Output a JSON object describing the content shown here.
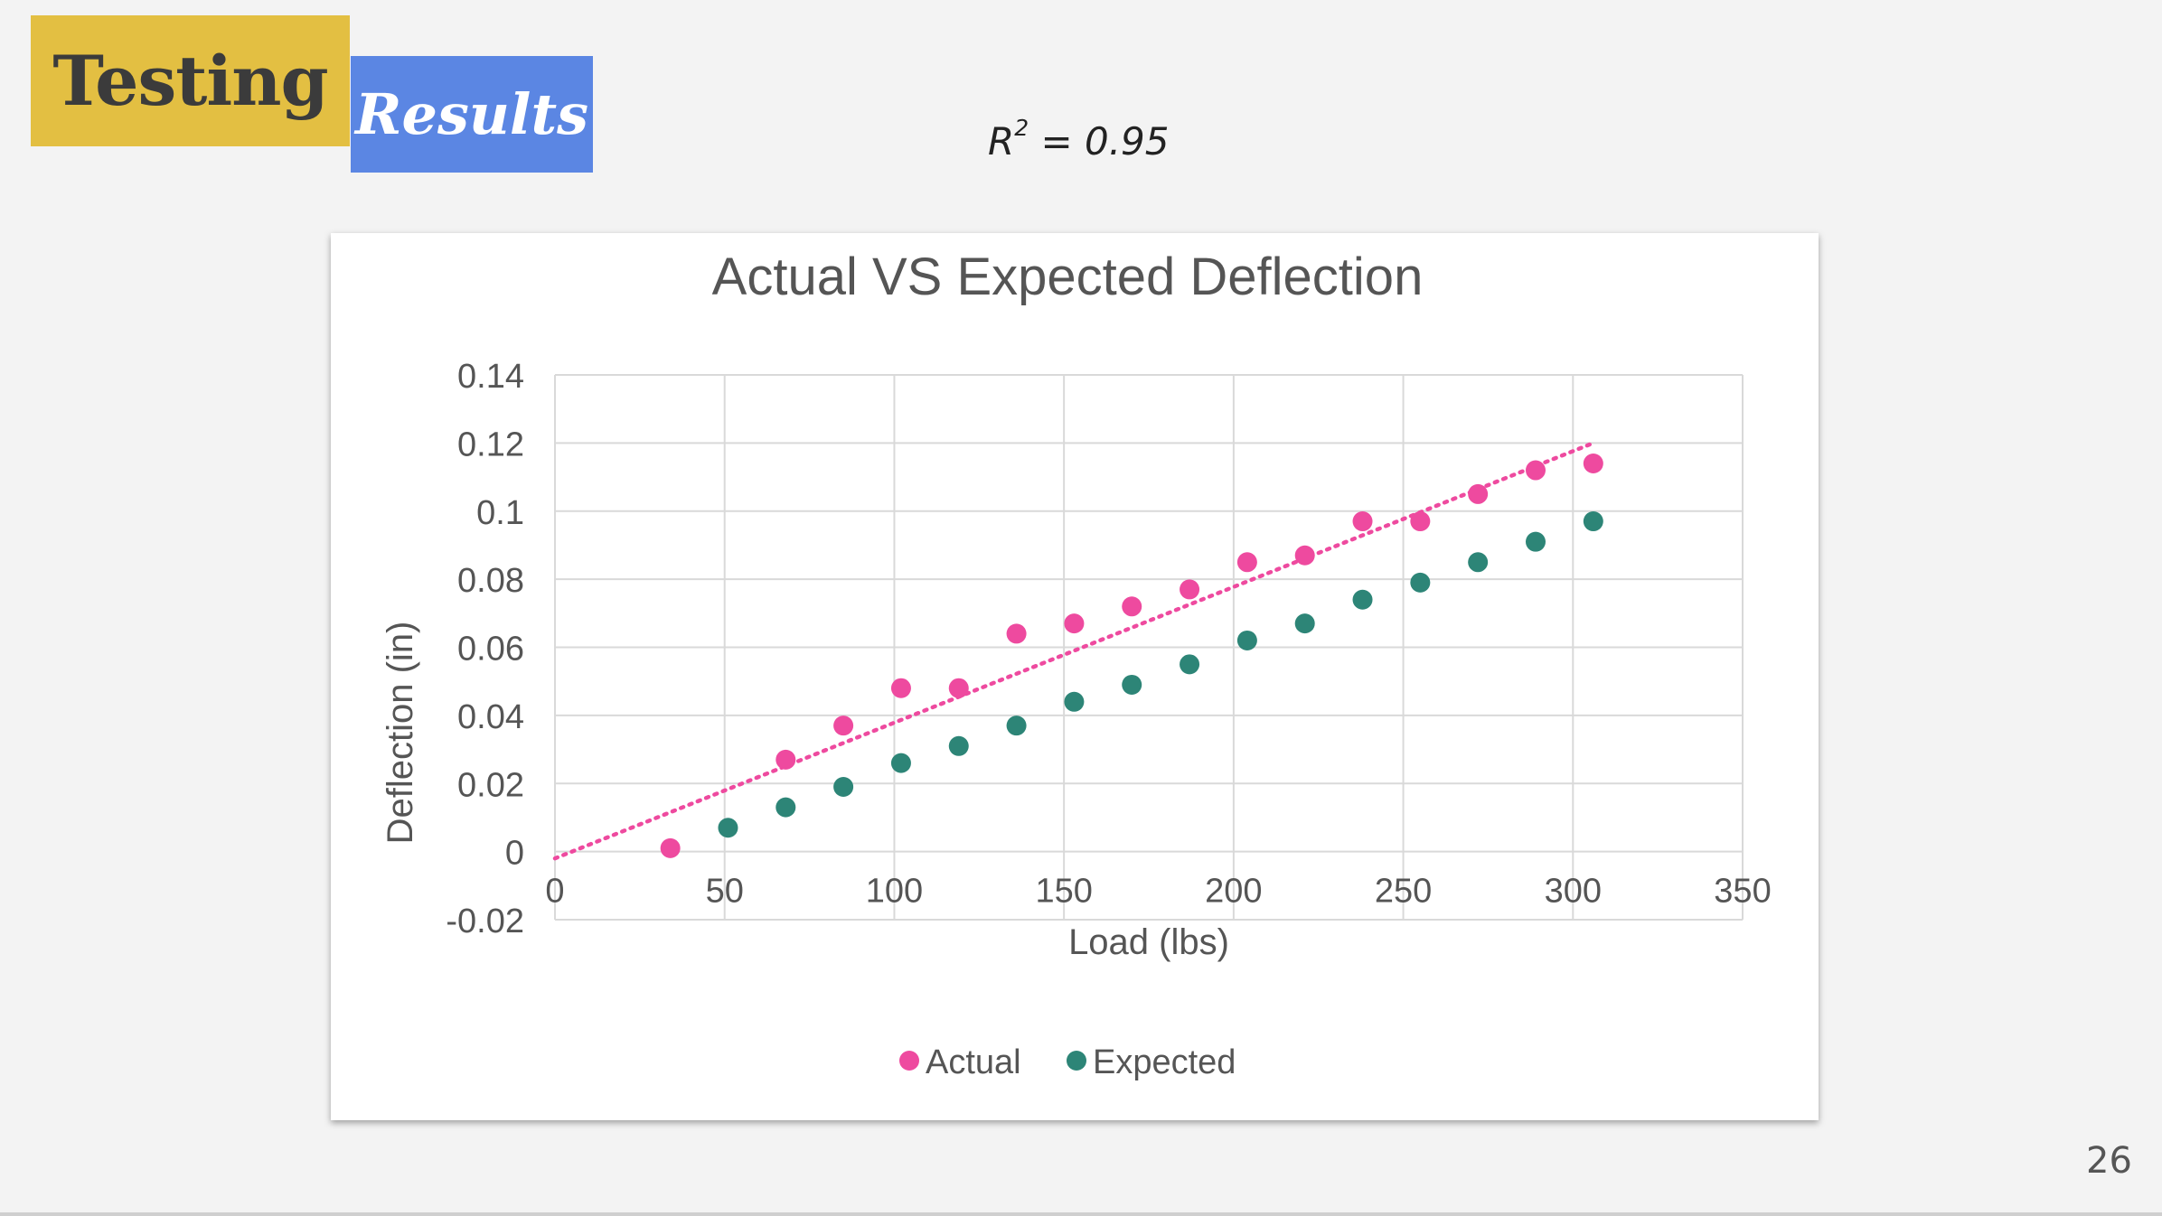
{
  "slide": {
    "title_part1": "Testing",
    "title_part2": "Results",
    "r2_prefix": "R",
    "r2_exponent": "2",
    "r2_suffix": " = 0.95",
    "page_number": "26"
  },
  "colors": {
    "actual": "#ee4a9f",
    "expected": "#2d8577",
    "trendline": "#ee4a9f",
    "grid": "#d9d9d9",
    "title_badge": "#e3bf42",
    "subtitle_badge": "#5b86e3"
  },
  "chart_data": {
    "type": "scatter",
    "title": "Actual VS Expected Deflection",
    "xlabel": "Load (lbs)",
    "ylabel": "Deflection (in)",
    "xlim": [
      0,
      350
    ],
    "ylim": [
      -0.02,
      0.14
    ],
    "xticks": [
      0,
      50,
      100,
      150,
      200,
      250,
      300,
      350
    ],
    "yticks": [
      -0.02,
      0,
      0.02,
      0.04,
      0.06,
      0.08,
      0.1,
      0.12,
      0.14
    ],
    "ytick_labels": [
      "-0.02",
      "0",
      "0.02",
      "0.04",
      "0.06",
      "0.08",
      "0.1",
      "0.12",
      "0.14"
    ],
    "grid": true,
    "legend_position": "bottom",
    "series": [
      {
        "name": "Actual",
        "color": "#ee4a9f",
        "x": [
          34,
          68,
          85,
          102,
          119,
          136,
          153,
          170,
          187,
          204,
          221,
          238,
          255,
          272,
          289,
          306
        ],
        "y": [
          0.001,
          0.027,
          0.037,
          0.048,
          0.048,
          0.064,
          0.067,
          0.072,
          0.077,
          0.085,
          0.087,
          0.097,
          0.097,
          0.105,
          0.112,
          0.114
        ]
      },
      {
        "name": "Expected",
        "color": "#2d8577",
        "x": [
          51,
          68,
          85,
          102,
          119,
          136,
          153,
          170,
          187,
          204,
          221,
          238,
          255,
          272,
          289,
          306
        ],
        "y": [
          0.007,
          0.013,
          0.019,
          0.026,
          0.031,
          0.037,
          0.044,
          0.049,
          0.055,
          0.062,
          0.067,
          0.074,
          0.079,
          0.085,
          0.091,
          0.097
        ]
      }
    ],
    "trendline": {
      "series": "Actual",
      "type": "linear",
      "style": "dotted",
      "x": [
        0,
        306
      ],
      "y": [
        -0.002,
        0.12
      ]
    }
  }
}
